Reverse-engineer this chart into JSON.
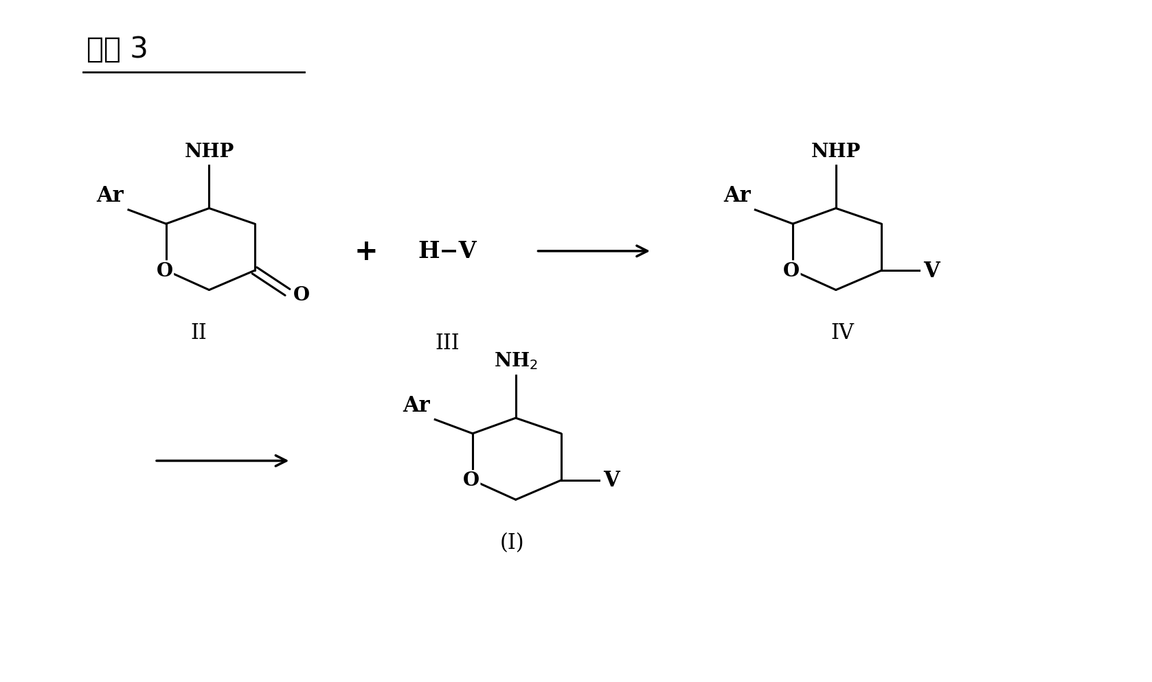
{
  "title": "方案 3",
  "background_color": "#ffffff",
  "text_color": "#000000",
  "compound_II_label": "II",
  "compound_III_label": "III",
  "compound_IV_label": "IV",
  "compound_I_label": "(I)",
  "plus_sign": "+",
  "fig_width": 16.77,
  "fig_height": 9.95,
  "lw": 2.2,
  "font_size_label": 22,
  "font_size_group": 20,
  "font_size_roman": 22,
  "font_size_title": 30
}
